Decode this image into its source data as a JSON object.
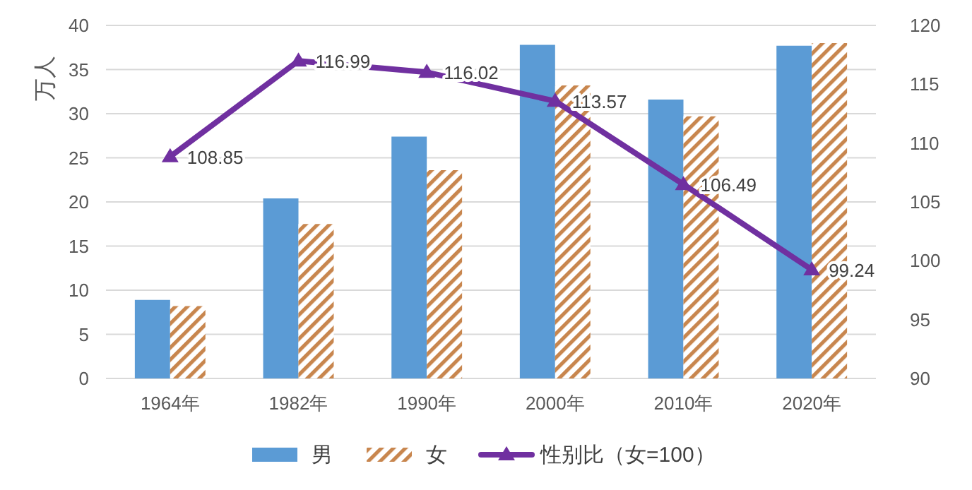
{
  "chart_data": {
    "type": "bar",
    "ylabel": "万人",
    "categories": [
      "1964年",
      "1982年",
      "1990年",
      "2000年",
      "2010年",
      "2020年"
    ],
    "series": [
      {
        "name": "男",
        "color": "#5b9bd5",
        "values": [
          8.9,
          20.4,
          27.4,
          37.8,
          31.6,
          37.7
        ]
      },
      {
        "name": "女",
        "color": "#c8864e",
        "values": [
          8.2,
          17.5,
          23.6,
          33.2,
          29.7,
          38.0
        ]
      },
      {
        "name": "性别比（女=100）",
        "type": "line",
        "axis": "y2",
        "color": "#7030a0",
        "marker": "triangle",
        "values": [
          108.85,
          116.99,
          116.02,
          113.57,
          106.49,
          99.24
        ],
        "value_labels": [
          "108.85",
          "116.99",
          "116.02",
          "113.57",
          "106.49",
          "99.24"
        ]
      }
    ],
    "ylim": [
      0,
      40
    ],
    "yticks": [
      0,
      5,
      10,
      15,
      20,
      25,
      30,
      35,
      40
    ],
    "y2lim": [
      90,
      120
    ],
    "y2ticks": [
      90,
      95,
      100,
      105,
      110,
      115,
      120
    ],
    "grid": "y",
    "legend": "bottom"
  }
}
